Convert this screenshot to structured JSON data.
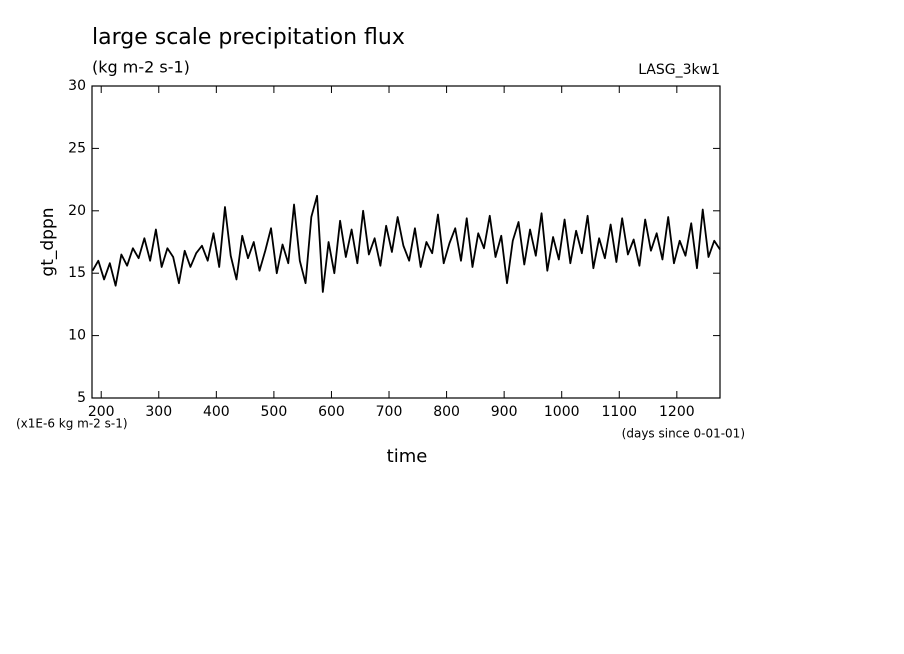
{
  "chart_data": {
    "type": "line",
    "title": "large scale precipitation flux",
    "subtitle": "(kg m-2 s-1)",
    "annotation": "LASG_3kw1",
    "ylabel": "gt_dppn",
    "yunit": "(x1E-6 kg m-2 s-1)",
    "xlabel": "time",
    "xunit": "(days since 0-01-01)",
    "color": "#000000",
    "xlim": [
      184,
      1275
    ],
    "ylim": [
      5,
      30
    ],
    "xticks": [
      200,
      300,
      400,
      500,
      600,
      700,
      800,
      900,
      1000,
      1100,
      1200
    ],
    "yticks": [
      5,
      10,
      15,
      20,
      25,
      30
    ],
    "x": [
      185,
      195,
      205,
      215,
      225,
      235,
      245,
      255,
      265,
      275,
      285,
      295,
      305,
      315,
      325,
      335,
      345,
      355,
      365,
      375,
      385,
      395,
      405,
      415,
      425,
      435,
      445,
      455,
      465,
      475,
      485,
      495,
      505,
      515,
      525,
      535,
      545,
      555,
      565,
      575,
      585,
      595,
      605,
      615,
      625,
      635,
      645,
      655,
      665,
      675,
      685,
      695,
      705,
      715,
      725,
      735,
      745,
      755,
      765,
      775,
      785,
      795,
      805,
      815,
      825,
      835,
      845,
      855,
      865,
      875,
      885,
      895,
      905,
      915,
      925,
      935,
      945,
      955,
      965,
      975,
      985,
      995,
      1005,
      1015,
      1025,
      1035,
      1045,
      1055,
      1065,
      1075,
      1085,
      1095,
      1105,
      1115,
      1125,
      1135,
      1145,
      1155,
      1165,
      1175,
      1185,
      1195,
      1205,
      1215,
      1225,
      1235,
      1245,
      1255,
      1265,
      1275
    ],
    "values": [
      15.2,
      16.0,
      14.5,
      15.8,
      14.0,
      16.5,
      15.6,
      17.0,
      16.2,
      17.8,
      16.0,
      18.5,
      15.5,
      17.0,
      16.3,
      14.2,
      16.8,
      15.5,
      16.6,
      17.2,
      16.0,
      18.2,
      15.5,
      20.3,
      16.4,
      14.5,
      18.0,
      16.2,
      17.5,
      15.2,
      16.8,
      18.6,
      15.0,
      17.3,
      15.8,
      20.5,
      16.0,
      14.2,
      19.5,
      21.2,
      13.5,
      17.5,
      15.0,
      19.2,
      16.3,
      18.5,
      15.8,
      20.0,
      16.5,
      17.8,
      15.6,
      18.8,
      16.7,
      19.5,
      17.2,
      16.0,
      18.6,
      15.5,
      17.5,
      16.6,
      19.7,
      15.8,
      17.4,
      18.6,
      16.0,
      19.4,
      15.5,
      18.2,
      17.0,
      19.6,
      16.3,
      18.0,
      14.2,
      17.6,
      19.1,
      15.7,
      18.5,
      16.4,
      19.8,
      15.2,
      17.9,
      16.1,
      19.3,
      15.8,
      18.4,
      16.6,
      19.6,
      15.4,
      17.8,
      16.2,
      18.9,
      15.9,
      19.4,
      16.5,
      17.7,
      15.6,
      19.3,
      16.8,
      18.2,
      16.1,
      19.5,
      15.8,
      17.6,
      16.4,
      19.0,
      15.4,
      20.1,
      16.3,
      17.6,
      16.9
    ]
  }
}
